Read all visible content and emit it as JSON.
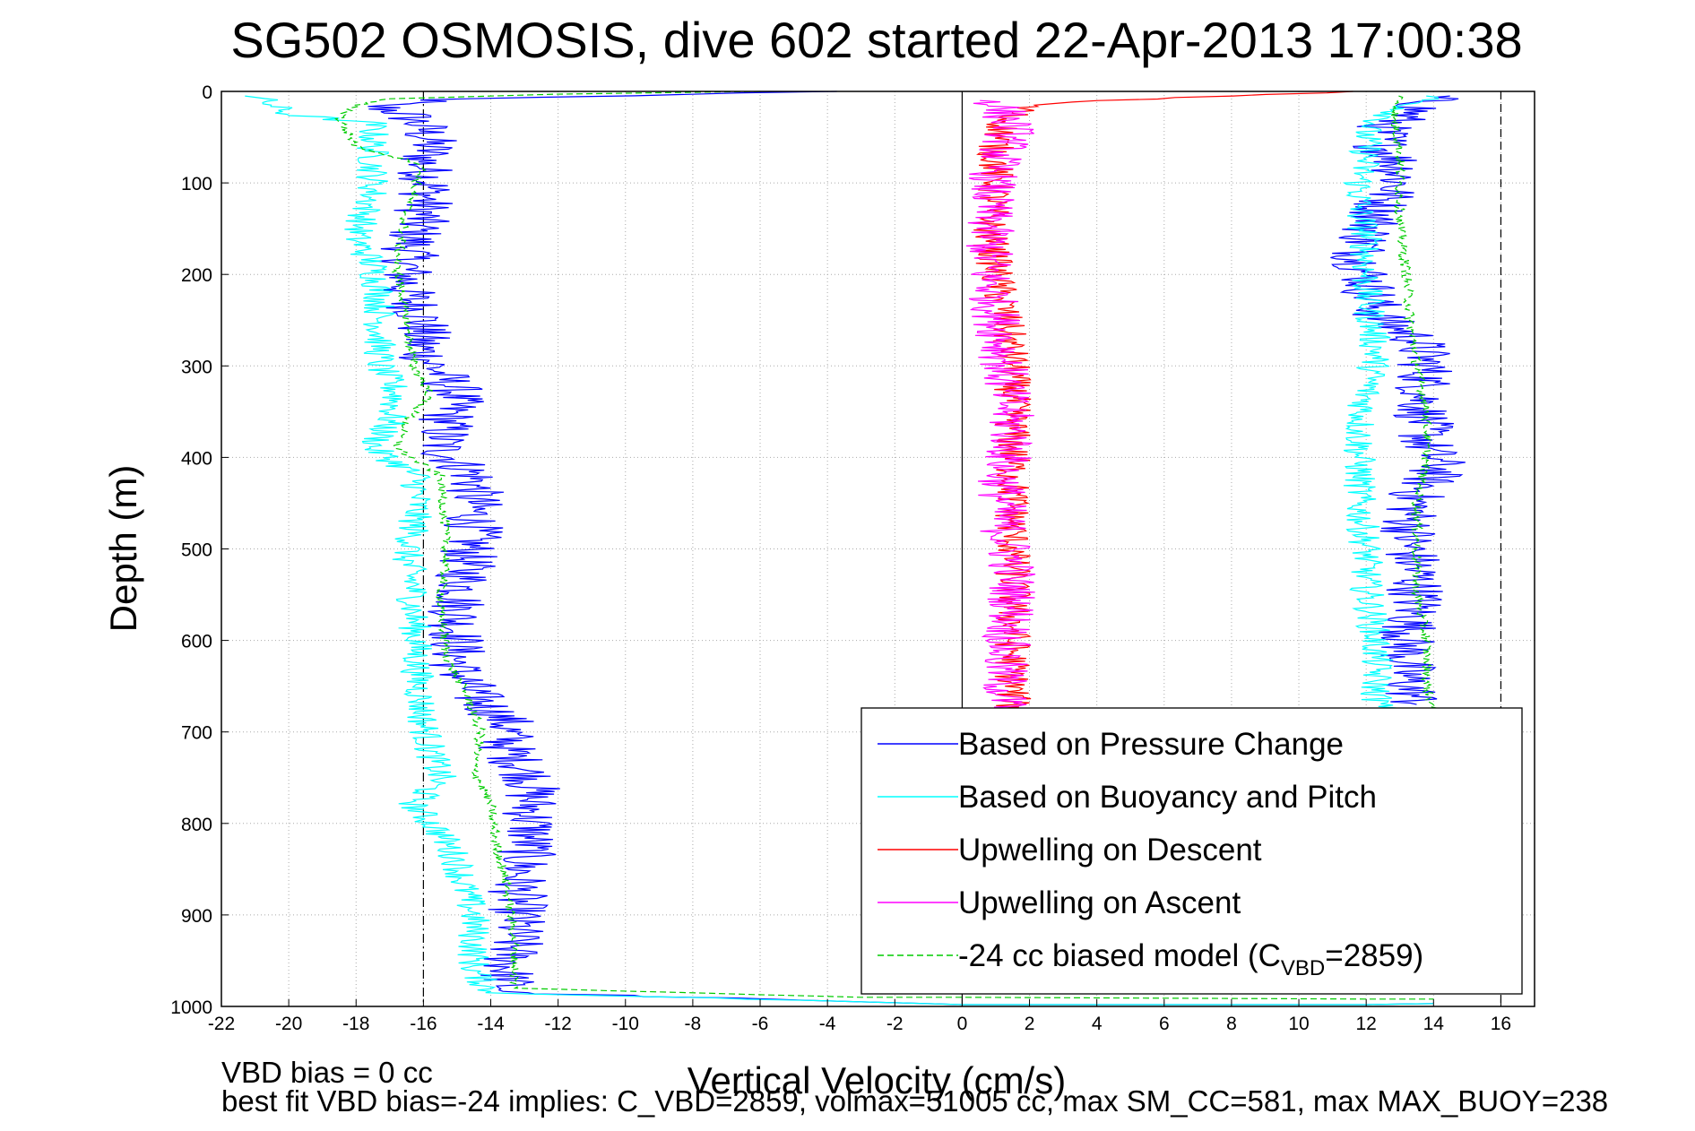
{
  "chart_data": {
    "type": "line",
    "title": "SG502 OSMOSIS, dive 602 started 22-Apr-2013 17:00:38",
    "xlabel": "Vertical Velocity (cm/s)",
    "ylabel": "Depth (m)",
    "xlim": [
      -22,
      17
    ],
    "ylim": [
      0,
      1000
    ],
    "y_reversed": true,
    "grid": true,
    "xticks": [
      -22,
      -20,
      -18,
      -16,
      -14,
      -12,
      -10,
      -8,
      -6,
      -4,
      -2,
      0,
      2,
      4,
      6,
      8,
      10,
      12,
      14,
      16
    ],
    "yticks": [
      0,
      100,
      200,
      300,
      400,
      500,
      600,
      700,
      800,
      900,
      1000
    ],
    "reference_lines": [
      {
        "x": -16,
        "style": "dash-dot",
        "color": "#000000"
      },
      {
        "x": 0,
        "style": "solid",
        "color": "#000000"
      },
      {
        "x": 16,
        "style": "dashed",
        "color": "#000000"
      }
    ],
    "legend": {
      "position": "bottom-right",
      "entries": [
        {
          "label": "Based on Pressure Change",
          "color": "#0000ff",
          "style": "solid"
        },
        {
          "label": "Based on Buoyancy and Pitch",
          "color": "#00ffff",
          "style": "solid"
        },
        {
          "label": "Upwelling on Descent",
          "color": "#ff0000",
          "style": "solid"
        },
        {
          "label": "Upwelling on Ascent",
          "color": "#ff00ff",
          "style": "solid"
        },
        {
          "label_pre": "-24 cc biased model (C",
          "label_sub": "VBD",
          "label_post": "=2859)",
          "color": "#00cc00",
          "style": "dashed"
        }
      ]
    },
    "series": [
      {
        "color": "#0000ff",
        "style": "solid",
        "noise": 0.9,
        "points": [
          [
            -4,
            0
          ],
          [
            -15,
            8
          ],
          [
            -17.5,
            15
          ],
          [
            -16.5,
            25
          ],
          [
            -16,
            40
          ],
          [
            -15.8,
            60
          ],
          [
            -16,
            80
          ],
          [
            -15.8,
            100
          ],
          [
            -16,
            130
          ],
          [
            -16.3,
            160
          ],
          [
            -16.5,
            190
          ],
          [
            -16.5,
            220
          ],
          [
            -16,
            250
          ],
          [
            -16.1,
            280
          ],
          [
            -15.7,
            300
          ],
          [
            -15,
            330
          ],
          [
            -15.3,
            360
          ],
          [
            -15.5,
            390
          ],
          [
            -14.5,
            420
          ],
          [
            -14.5,
            450
          ],
          [
            -14.5,
            480
          ],
          [
            -14.7,
            510
          ],
          [
            -14.8,
            540
          ],
          [
            -15,
            570
          ],
          [
            -15,
            600
          ],
          [
            -15,
            630
          ],
          [
            -14.5,
            660
          ],
          [
            -13.5,
            690
          ],
          [
            -13.5,
            720
          ],
          [
            -12.8,
            750
          ],
          [
            -12.8,
            780
          ],
          [
            -12.8,
            810
          ],
          [
            -13,
            840
          ],
          [
            -13.2,
            870
          ],
          [
            -13.2,
            900
          ],
          [
            -13.3,
            930
          ],
          [
            -13.5,
            960
          ],
          [
            -13.5,
            985
          ],
          [
            -3,
            995
          ],
          [
            0,
            998
          ],
          [
            12,
            998
          ],
          [
            14,
            997
          ]
        ]
      },
      {
        "color": "#0000ff",
        "style": "solid",
        "noise": 0.9,
        "points": [
          [
            14,
            5
          ],
          [
            13.5,
            20
          ],
          [
            12.5,
            40
          ],
          [
            12.5,
            60
          ],
          [
            13,
            80
          ],
          [
            13,
            100
          ],
          [
            12.5,
            120
          ],
          [
            12.3,
            140
          ],
          [
            12,
            160
          ],
          [
            11.8,
            180
          ],
          [
            12,
            200
          ],
          [
            12.2,
            230
          ],
          [
            12.5,
            250
          ],
          [
            13.5,
            270
          ],
          [
            13.8,
            300
          ],
          [
            13.7,
            330
          ],
          [
            13.7,
            360
          ],
          [
            13.8,
            390
          ],
          [
            14.2,
            410
          ],
          [
            13.5,
            440
          ],
          [
            13.3,
            470
          ],
          [
            13.3,
            500
          ],
          [
            13.5,
            530
          ],
          [
            13.5,
            560
          ],
          [
            13.2,
            600
          ],
          [
            13.2,
            640
          ],
          [
            13.5,
            670
          ]
        ]
      },
      {
        "color": "#00ffff",
        "style": "solid",
        "noise": 0.5,
        "points": [
          [
            -21,
            5
          ],
          [
            -20.5,
            15
          ],
          [
            -20,
            25
          ],
          [
            -17.5,
            35
          ],
          [
            -17.5,
            50
          ],
          [
            -17.5,
            80
          ],
          [
            -17.5,
            110
          ],
          [
            -17.8,
            140
          ],
          [
            -18,
            160
          ],
          [
            -17.5,
            190
          ],
          [
            -17.3,
            220
          ],
          [
            -17.3,
            250
          ],
          [
            -17.3,
            280
          ],
          [
            -17.3,
            300
          ],
          [
            -16.8,
            330
          ],
          [
            -17,
            360
          ],
          [
            -17.5,
            390
          ],
          [
            -16.2,
            420
          ],
          [
            -16.2,
            450
          ],
          [
            -16.3,
            480
          ],
          [
            -16.5,
            510
          ],
          [
            -16.3,
            540
          ],
          [
            -16.3,
            570
          ],
          [
            -16.2,
            600
          ],
          [
            -16.2,
            630
          ],
          [
            -16.1,
            660
          ],
          [
            -16,
            690
          ],
          [
            -15.8,
            720
          ],
          [
            -15.5,
            750
          ],
          [
            -16.3,
            780
          ],
          [
            -15.5,
            810
          ],
          [
            -15,
            840
          ],
          [
            -14.8,
            870
          ],
          [
            -14.5,
            900
          ],
          [
            -14.5,
            930
          ],
          [
            -14.5,
            960
          ],
          [
            -14,
            985
          ],
          [
            -3,
            995
          ],
          [
            0,
            998
          ],
          [
            12,
            998
          ],
          [
            14,
            997
          ]
        ]
      },
      {
        "color": "#00ffff",
        "style": "solid",
        "noise": 0.5,
        "points": [
          [
            14,
            5
          ],
          [
            13,
            20
          ],
          [
            12,
            40
          ],
          [
            12,
            70
          ],
          [
            11.8,
            100
          ],
          [
            11.8,
            130
          ],
          [
            12,
            160
          ],
          [
            12,
            190
          ],
          [
            12,
            220
          ],
          [
            12.2,
            260
          ],
          [
            12.3,
            290
          ],
          [
            12,
            330
          ],
          [
            11.8,
            370
          ],
          [
            11.8,
            410
          ],
          [
            11.8,
            450
          ],
          [
            12,
            500
          ],
          [
            12,
            540
          ],
          [
            12.2,
            580
          ],
          [
            12.3,
            620
          ],
          [
            12.3,
            660
          ],
          [
            12.5,
            680
          ]
        ]
      },
      {
        "color": "#ff0000",
        "style": "solid",
        "noise": 0.55,
        "points": [
          [
            12,
            0
          ],
          [
            8,
            5
          ],
          [
            4,
            10
          ],
          [
            2,
            15
          ],
          [
            1.3,
            30
          ],
          [
            1,
            60
          ],
          [
            1,
            100
          ],
          [
            0.8,
            150
          ],
          [
            1,
            200
          ],
          [
            1.3,
            250
          ],
          [
            1.5,
            300
          ],
          [
            1.5,
            350
          ],
          [
            1.5,
            400
          ],
          [
            1.5,
            450
          ],
          [
            1.5,
            500
          ],
          [
            1.5,
            550
          ],
          [
            1.5,
            600
          ],
          [
            1.5,
            650
          ],
          [
            1.5,
            700
          ]
        ]
      },
      {
        "color": "#ff00ff",
        "style": "solid",
        "noise": 0.75,
        "points": [
          [
            1,
            10
          ],
          [
            1.5,
            40
          ],
          [
            1,
            80
          ],
          [
            0.8,
            120
          ],
          [
            0.8,
            160
          ],
          [
            0.8,
            200
          ],
          [
            1,
            240
          ],
          [
            1.2,
            280
          ],
          [
            1.3,
            330
          ],
          [
            1.5,
            380
          ],
          [
            1.2,
            420
          ],
          [
            1.2,
            470
          ],
          [
            1.5,
            520
          ],
          [
            1.5,
            570
          ],
          [
            1.2,
            620
          ],
          [
            1.3,
            670
          ],
          [
            1.5,
            700
          ]
        ]
      },
      {
        "color": "#00cc00",
        "style": "dashed",
        "noise": 0.15,
        "points": [
          [
            -6,
            0
          ],
          [
            -12,
            3
          ],
          [
            -17,
            8
          ],
          [
            -18,
            15
          ],
          [
            -18.5,
            30
          ],
          [
            -18,
            60
          ],
          [
            -16,
            80
          ],
          [
            -16.5,
            130
          ],
          [
            -16.8,
            190
          ],
          [
            -16.5,
            250
          ],
          [
            -16.3,
            300
          ],
          [
            -15.8,
            330
          ],
          [
            -16.5,
            360
          ],
          [
            -16.8,
            390
          ],
          [
            -15.5,
            420
          ],
          [
            -15.3,
            500
          ],
          [
            -15.5,
            560
          ],
          [
            -15.3,
            620
          ],
          [
            -14.7,
            660
          ],
          [
            -14.3,
            700
          ],
          [
            -14.5,
            740
          ],
          [
            -14,
            780
          ],
          [
            -13.8,
            830
          ],
          [
            -13.5,
            870
          ],
          [
            -13.3,
            930
          ],
          [
            -13.3,
            980
          ],
          [
            -3,
            990
          ],
          [
            0,
            990
          ],
          [
            12,
            992
          ],
          [
            14,
            992
          ]
        ]
      },
      {
        "color": "#00cc00",
        "style": "dashed",
        "noise": 0.15,
        "points": [
          [
            13,
            5
          ],
          [
            12.8,
            30
          ],
          [
            13,
            60
          ],
          [
            13,
            100
          ],
          [
            13,
            150
          ],
          [
            13.2,
            200
          ],
          [
            13.3,
            250
          ],
          [
            13.5,
            300
          ],
          [
            13.8,
            350
          ],
          [
            13.8,
            400
          ],
          [
            13.5,
            450
          ],
          [
            13.5,
            500
          ],
          [
            13.5,
            550
          ],
          [
            13.8,
            600
          ],
          [
            13.8,
            650
          ],
          [
            14,
            680
          ]
        ]
      }
    ]
  },
  "footer": {
    "line1": "VBD bias = 0 cc",
    "line2": "best fit VBD bias=-24 implies: C_VBD=2859, volmax=51005 cc, max SM_CC=581, max MAX_BUOY=238"
  }
}
